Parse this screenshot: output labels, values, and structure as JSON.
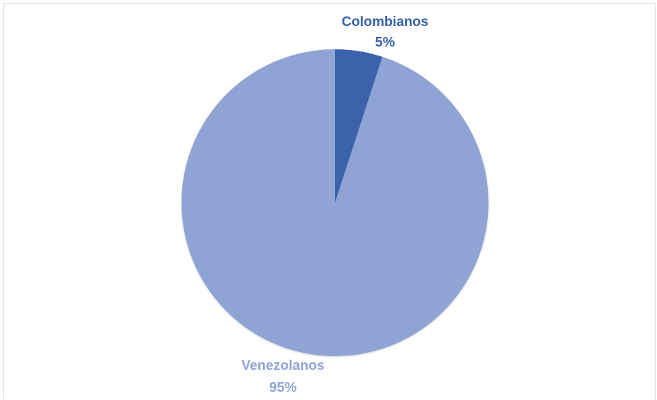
{
  "chart_data": {
    "type": "pie",
    "slices": [
      {
        "label": "Colombianos",
        "value": 5,
        "value_label": "5%",
        "color": "#3a62ab"
      },
      {
        "label": "Venezolanos",
        "value": 95,
        "value_label": "95%",
        "color": "#8fa3d4"
      }
    ],
    "start_angle_deg": 0,
    "direction": "clockwise",
    "legend": "none",
    "title": ""
  }
}
